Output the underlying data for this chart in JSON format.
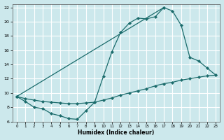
{
  "xlabel": "Humidex (Indice chaleur)",
  "bg_color": "#cce8ec",
  "grid_color": "#ffffff",
  "line_color": "#1a6b6b",
  "xlim": [
    -0.5,
    23.5
  ],
  "ylim": [
    6,
    22.5
  ],
  "xticks": [
    0,
    1,
    2,
    3,
    4,
    5,
    6,
    7,
    8,
    9,
    10,
    11,
    12,
    13,
    14,
    15,
    16,
    17,
    18,
    19,
    20,
    21,
    22,
    23
  ],
  "yticks": [
    6,
    8,
    10,
    12,
    14,
    16,
    18,
    20,
    22
  ],
  "curve1_x": [
    0,
    1,
    2,
    3,
    4,
    5,
    6,
    7,
    8,
    9,
    10,
    11,
    12,
    13,
    14,
    15,
    16,
    17
  ],
  "curve1_y": [
    9.5,
    8.8,
    8.0,
    7.8,
    7.1,
    6.8,
    6.4,
    6.3,
    7.5,
    8.7,
    12.3,
    15.8,
    18.5,
    19.8,
    20.5,
    20.4,
    20.7,
    22.0
  ],
  "curve2_x": [
    0,
    17,
    18,
    19,
    20,
    21,
    22,
    23
  ],
  "curve2_y": [
    9.5,
    22.0,
    21.5,
    19.5,
    15.0,
    14.5,
    13.5,
    12.5
  ],
  "curve3_x": [
    0,
    1,
    2,
    3,
    4,
    5,
    6,
    7,
    8,
    9,
    10,
    11,
    12,
    13,
    14,
    15,
    16,
    17,
    18,
    19,
    20,
    21,
    22,
    23
  ],
  "curve3_y": [
    9.5,
    9.2,
    9.0,
    8.8,
    8.7,
    8.6,
    8.5,
    8.5,
    8.6,
    8.7,
    9.0,
    9.3,
    9.7,
    10.0,
    10.3,
    10.6,
    11.0,
    11.3,
    11.5,
    11.8,
    12.0,
    12.2,
    12.4,
    12.5
  ]
}
